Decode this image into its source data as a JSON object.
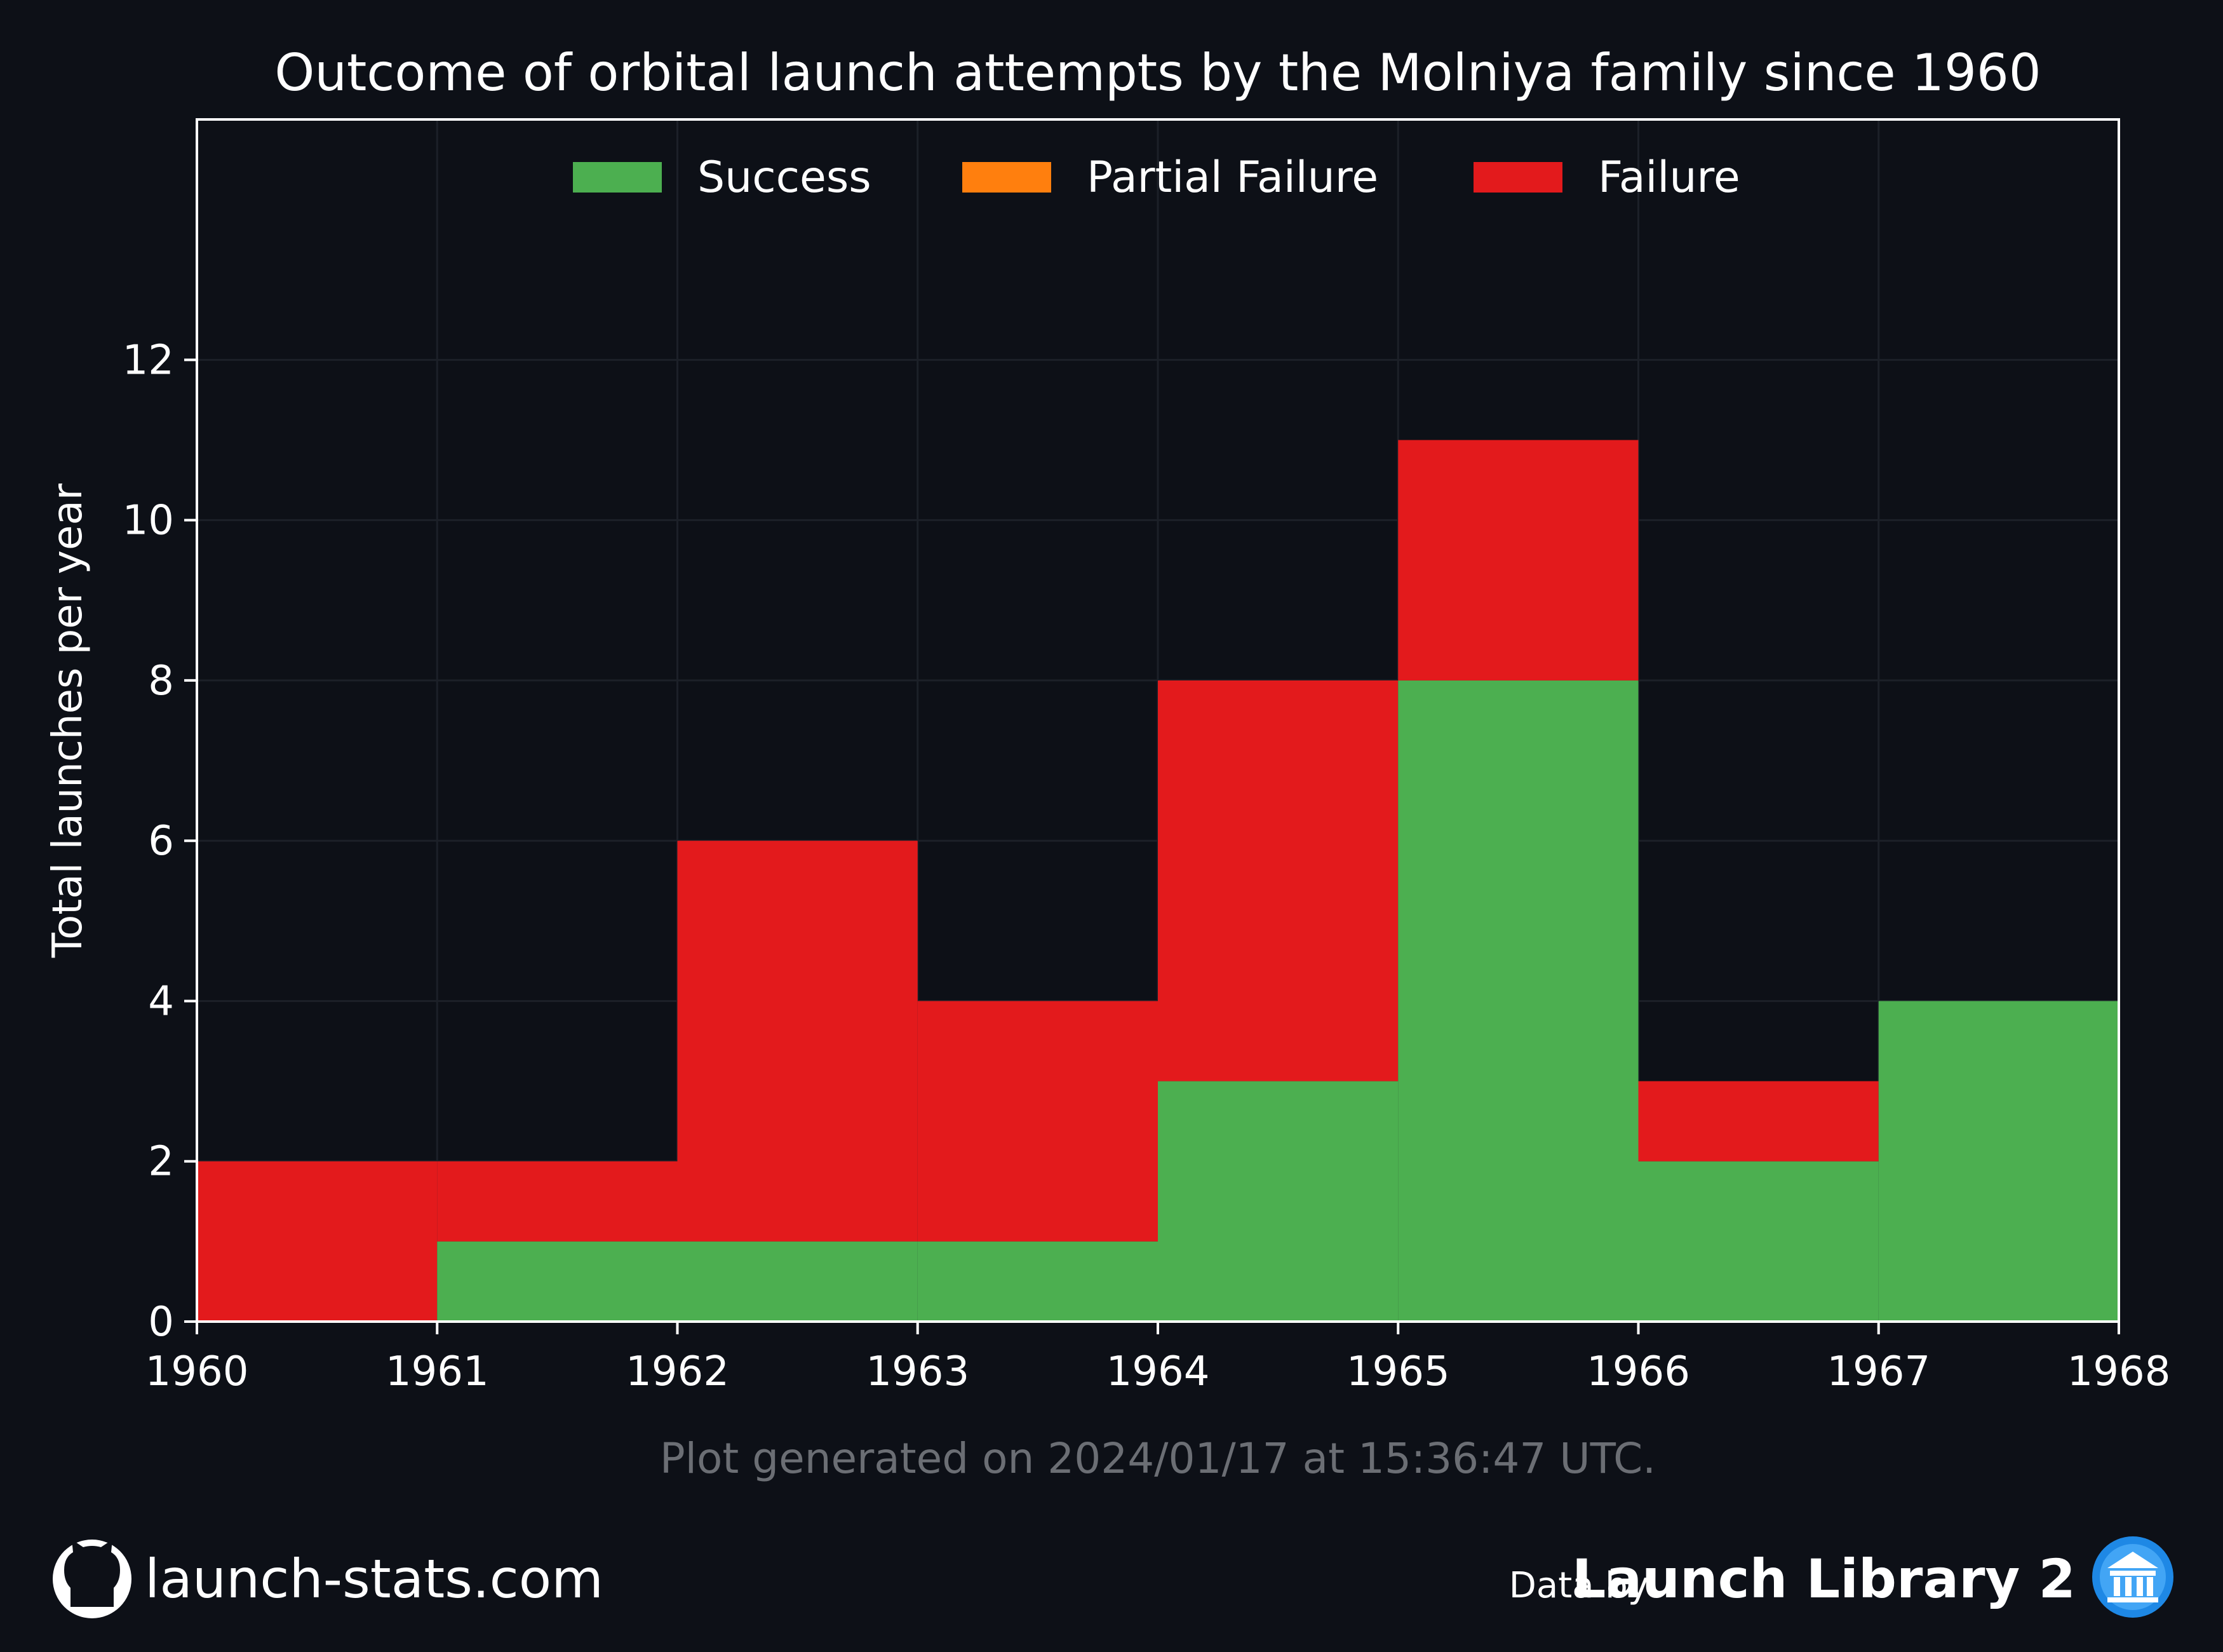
{
  "footer": {
    "generated": "Plot generated on 2024/01/17 at 15:36:47 UTC.",
    "site": "launch-stats.com",
    "data_by": "Data by",
    "library": "Launch Library 2"
  },
  "colors": {
    "background": "#0d1017",
    "success": "#4caf50",
    "partial_failure": "#ff7f0e",
    "failure": "#e31a1c",
    "grid": "#1c2028",
    "footnote": "#6b6e74"
  },
  "icons": [
    "github-icon",
    "launch-library-logo-icon"
  ],
  "chart_data": {
    "type": "bar",
    "stacked": true,
    "title": "Outcome of orbital launch attempts by the Molniya family since 1960",
    "ylabel": "Total launches per year",
    "xlabel": "",
    "x_edges": [
      1960,
      1961,
      1962,
      1963,
      1964,
      1965,
      1966,
      1967,
      1968
    ],
    "categories": [
      "1960",
      "1961",
      "1962",
      "1963",
      "1964",
      "1965",
      "1966",
      "1967"
    ],
    "x_ticks": [
      "1960",
      "1961",
      "1962",
      "1963",
      "1964",
      "1965",
      "1966",
      "1967",
      "1968"
    ],
    "y_ticks": [
      "0",
      "2",
      "4",
      "6",
      "8",
      "10",
      "12"
    ],
    "ylim": [
      0,
      15
    ],
    "xlim": [
      1960,
      1968
    ],
    "grid": true,
    "legend": "top-center",
    "series": [
      {
        "name": "Success",
        "color": "#4caf50",
        "values": [
          0,
          1,
          1,
          1,
          3,
          8,
          2,
          4
        ]
      },
      {
        "name": "Partial Failure",
        "color": "#ff7f0e",
        "values": [
          0,
          0,
          0,
          0,
          0,
          0,
          0,
          0
        ]
      },
      {
        "name": "Failure",
        "color": "#e31a1c",
        "values": [
          2,
          1,
          5,
          3,
          5,
          3,
          1,
          0
        ]
      }
    ]
  }
}
